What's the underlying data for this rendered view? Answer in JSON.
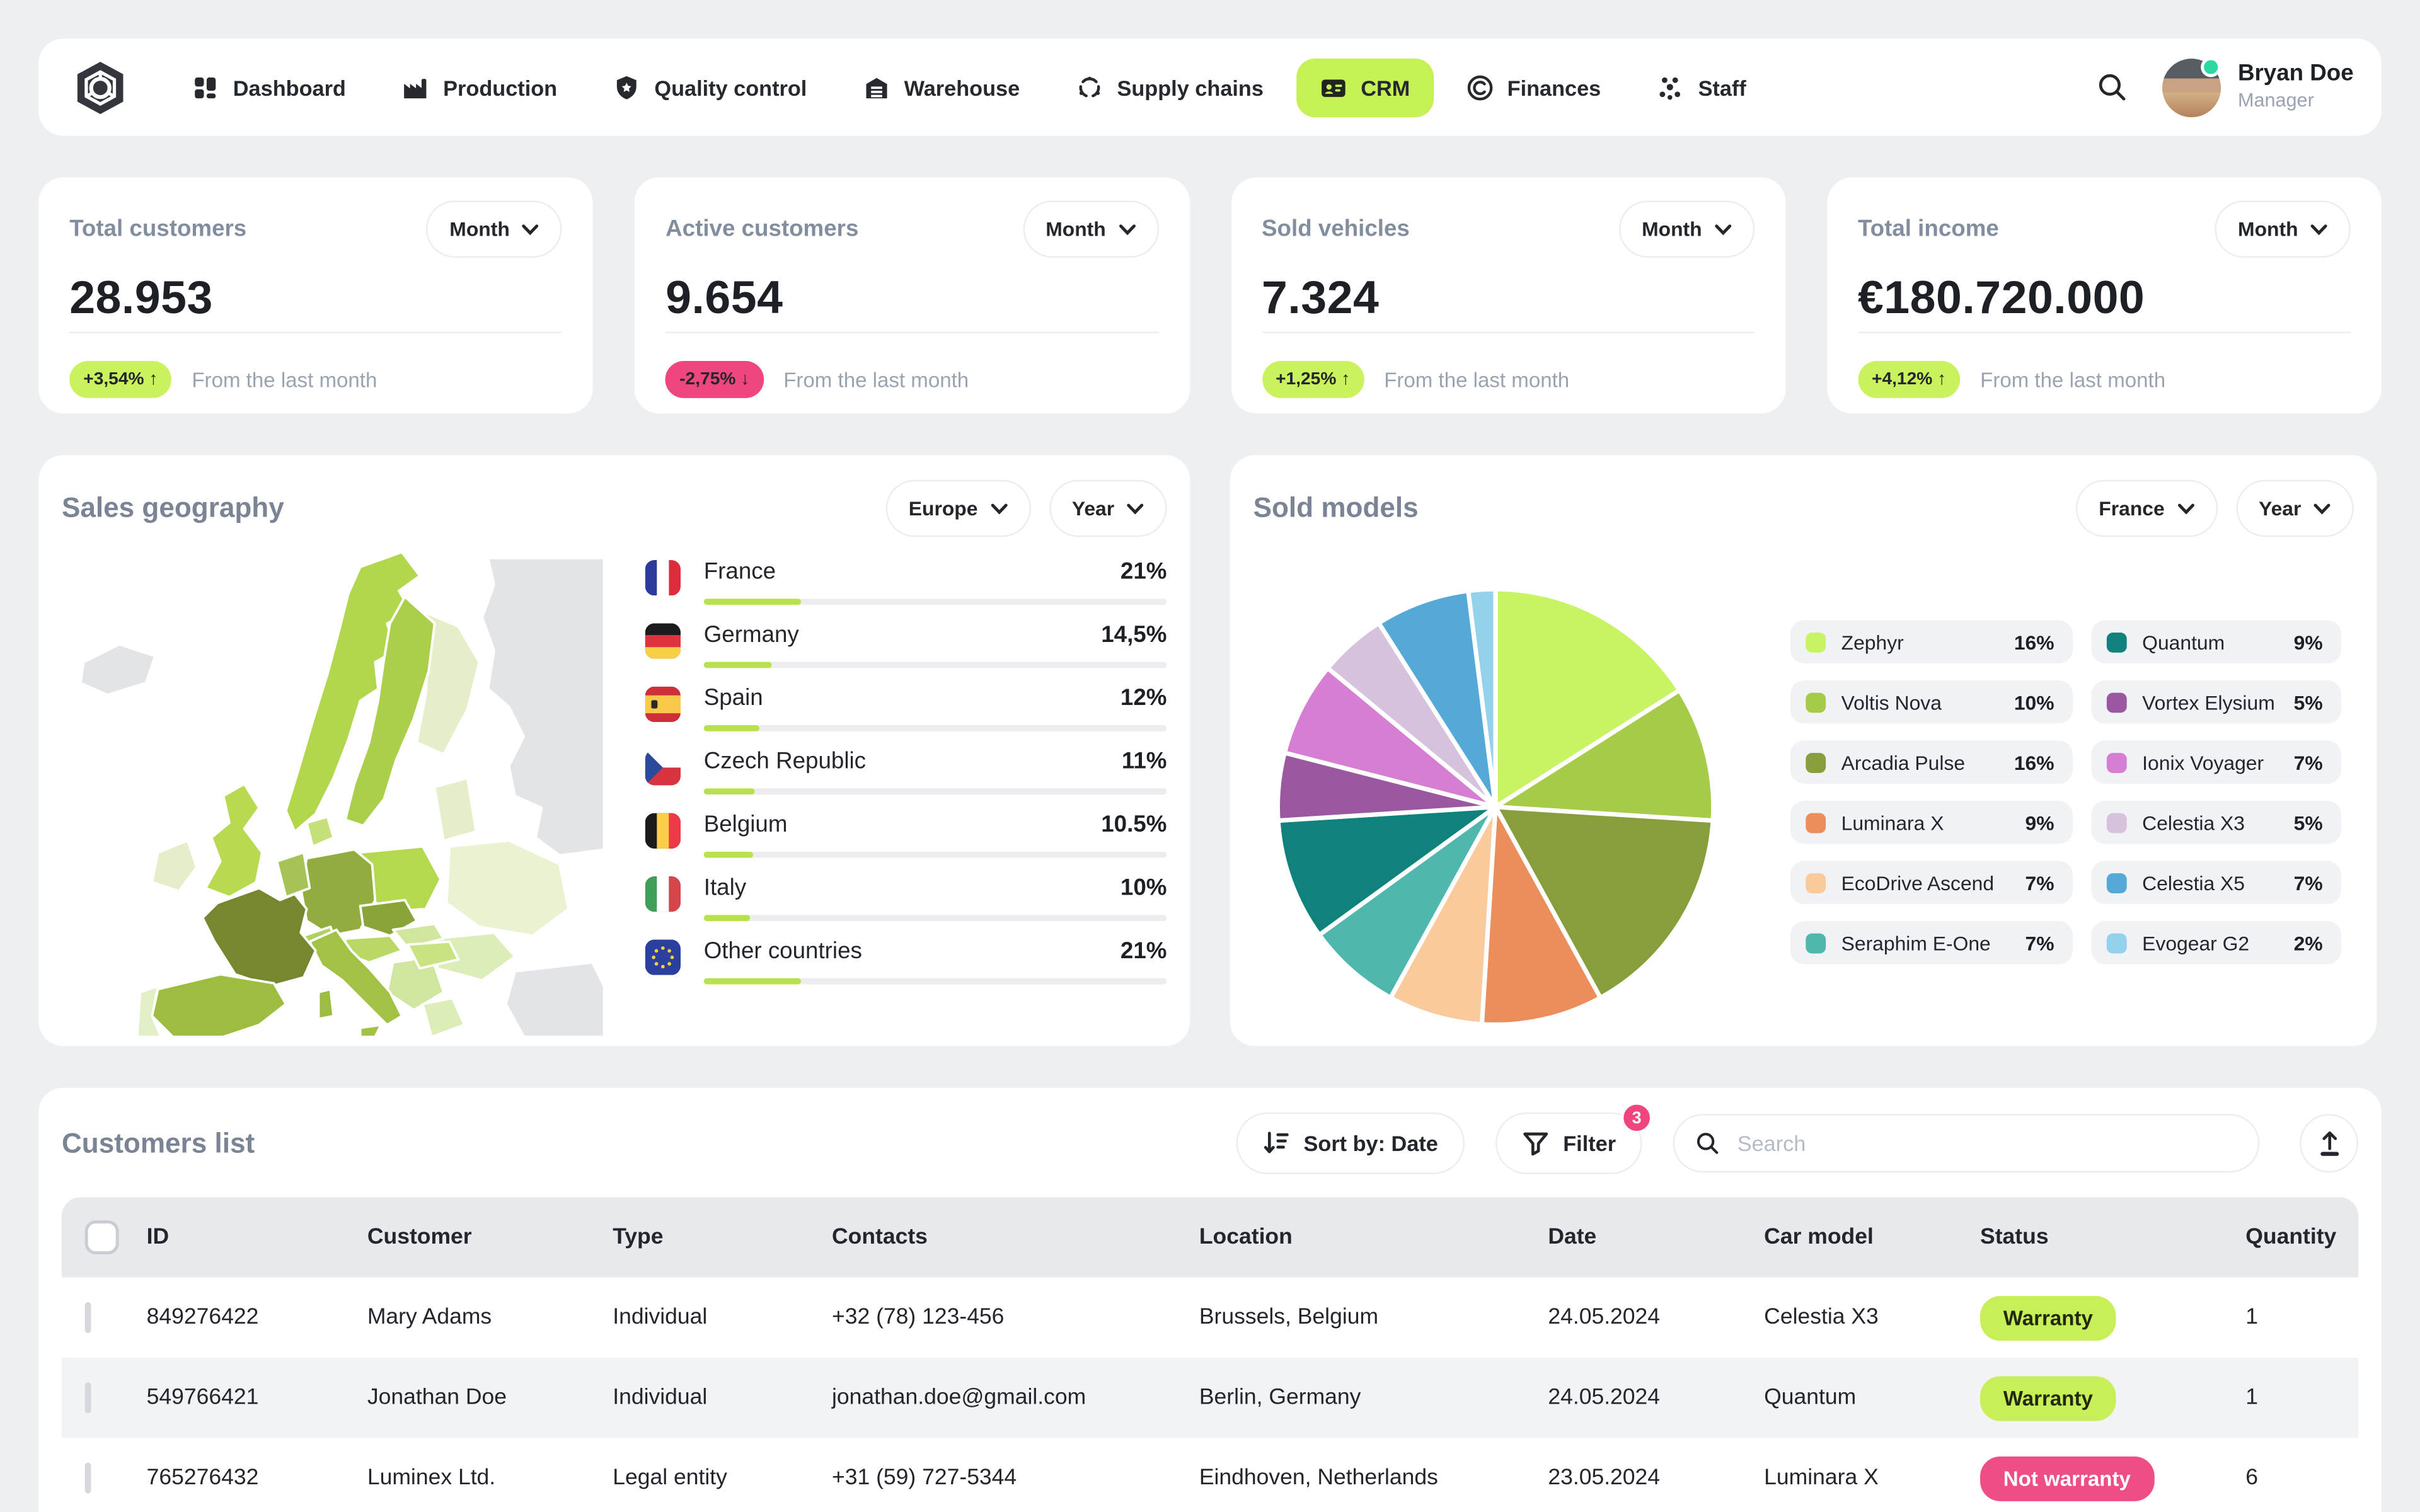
{
  "nav": {
    "items": [
      {
        "label": "Dashboard"
      },
      {
        "label": "Production"
      },
      {
        "label": "Quality control"
      },
      {
        "label": "Warehouse"
      },
      {
        "label": "Supply chains"
      },
      {
        "label": "CRM",
        "active": true
      },
      {
        "label": "Finances"
      },
      {
        "label": "Staff"
      }
    ],
    "user": {
      "name": "Bryan Doe",
      "role": "Manager"
    }
  },
  "stats": {
    "cards": [
      {
        "title": "Total customers",
        "period": "Month",
        "value": "28.953",
        "delta": "+3,54%",
        "arrow": "↑",
        "trend": "positive",
        "note": "From the last month"
      },
      {
        "title": "Active customers",
        "period": "Month",
        "value": "9.654",
        "delta": "-2,75%",
        "arrow": "↓",
        "trend": "negative",
        "note": "From the last month"
      },
      {
        "title": "Sold vehicles",
        "period": "Month",
        "value": "7.324",
        "delta": "+1,25%",
        "arrow": "↑",
        "trend": "positive",
        "note": "From the last month"
      },
      {
        "title": "Total income",
        "period": "Month",
        "value": "€180.720.000",
        "delta": "+4,12%",
        "arrow": "↑",
        "trend": "positive",
        "note": "From the last month"
      }
    ]
  },
  "sales_geography": {
    "title": "Sales geography",
    "region_filter": "Europe",
    "period_filter": "Year",
    "countries": [
      {
        "name": "France",
        "pct": 21,
        "pct_label": "21%",
        "flag": "fr"
      },
      {
        "name": "Germany",
        "pct": 14.5,
        "pct_label": "14,5%",
        "flag": "de"
      },
      {
        "name": "Spain",
        "pct": 12,
        "pct_label": "12%",
        "flag": "es"
      },
      {
        "name": "Czech Republic",
        "pct": 11,
        "pct_label": "11%",
        "flag": "cz"
      },
      {
        "name": "Belgium",
        "pct": 10.5,
        "pct_label": "10.5%",
        "flag": "be"
      },
      {
        "name": "Italy",
        "pct": 10,
        "pct_label": "10%",
        "flag": "it"
      },
      {
        "name": "Other countries",
        "pct": 21,
        "pct_label": "21%",
        "flag": "eu"
      }
    ]
  },
  "sold_models": {
    "title": "Sold models",
    "region_filter": "France",
    "period_filter": "Year"
  },
  "chart_data": [
    {
      "type": "pie",
      "title": "Sold models",
      "labels": [
        "Zephyr",
        "Voltis Nova",
        "Arcadia Pulse",
        "Luminara X",
        "EcoDrive Ascend",
        "Seraphim E-One",
        "Quantum",
        "Vortex Elysium",
        "Ionix Voyager",
        "Celestia X3",
        "Celestia X5",
        "Evogear G2"
      ],
      "values": [
        16,
        10,
        16,
        9,
        7,
        7,
        9,
        5,
        7,
        5,
        7,
        2
      ],
      "unit": "%",
      "colors": [
        "#c7f364",
        "#a6cb48",
        "#889d3c",
        "#eb8e5b",
        "#f9ca9c",
        "#4fb7ad",
        "#0f837b",
        "#9a58a0",
        "#d67fd2",
        "#d6c2dd",
        "#54a9d7",
        "#93d1ec"
      ],
      "legend_position": "right",
      "start_angle_deg": -90,
      "direction": "clockwise"
    },
    {
      "type": "bar",
      "title": "Sales geography",
      "categories": [
        "France",
        "Germany",
        "Spain",
        "Czech Republic",
        "Belgium",
        "Italy",
        "Other countries"
      ],
      "values": [
        21,
        14.5,
        12,
        11,
        10.5,
        10,
        21
      ],
      "value_labels": [
        "21%",
        "14,5%",
        "12%",
        "11%",
        "10.5%",
        "10%",
        "21%"
      ],
      "unit": "%",
      "xlim": [
        0,
        100
      ]
    }
  ],
  "customers": {
    "title": "Customers list",
    "sort_label": "Sort by: Date",
    "filter_label": "Filter",
    "filter_count": "3",
    "search_placeholder": "Search",
    "columns": [
      "ID",
      "Customer",
      "Type",
      "Contacts",
      "Location",
      "Date",
      "Car model",
      "Status",
      "Quantity"
    ],
    "rows": [
      {
        "id": "849276422",
        "customer": "Mary Adams",
        "type": "Individual",
        "contacts": "+32 (78) 123-456",
        "location": "Brussels, Belgium",
        "date": "24.05.2024",
        "car_model": "Celestia X3",
        "status": "Warranty",
        "status_type": "positive",
        "quantity": "1"
      },
      {
        "id": "549766421",
        "customer": "Jonathan Doe",
        "type": "Individual",
        "contacts": "jonathan.doe@gmail.com",
        "location": "Berlin, Germany",
        "date": "24.05.2024",
        "car_model": "Quantum",
        "status": "Warranty",
        "status_type": "positive",
        "quantity": "1"
      },
      {
        "id": "765276432",
        "customer": "Luminex Ltd.",
        "type": "Legal entity",
        "contacts": "+31 (59) 727-5344",
        "location": "Eindhoven, Netherlands",
        "date": "23.05.2024",
        "car_model": "Luminara X",
        "status": "Not warranty",
        "status_type": "negative",
        "quantity": "6"
      }
    ]
  }
}
